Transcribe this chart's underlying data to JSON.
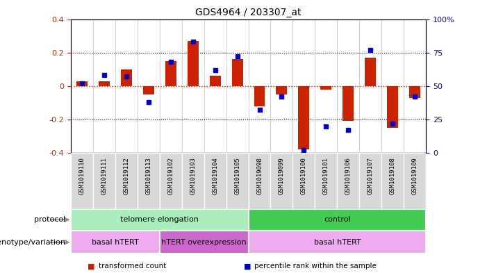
{
  "title": "GDS4964 / 203307_at",
  "samples": [
    "GSM1019110",
    "GSM1019111",
    "GSM1019112",
    "GSM1019113",
    "GSM1019102",
    "GSM1019103",
    "GSM1019104",
    "GSM1019105",
    "GSM1019098",
    "GSM1019099",
    "GSM1019100",
    "GSM1019101",
    "GSM1019106",
    "GSM1019107",
    "GSM1019108",
    "GSM1019109"
  ],
  "transformed_count": [
    0.03,
    0.03,
    0.1,
    -0.05,
    0.15,
    0.27,
    0.06,
    0.16,
    -0.12,
    -0.05,
    -0.38,
    -0.02,
    -0.21,
    0.17,
    -0.25,
    -0.07
  ],
  "percentile_rank": [
    52,
    58,
    57,
    38,
    68,
    83,
    62,
    72,
    32,
    42,
    2,
    20,
    17,
    77,
    22,
    42
  ],
  "ylim_left": [
    -0.4,
    0.4
  ],
  "ylim_right": [
    0,
    100
  ],
  "yticks_left": [
    -0.4,
    -0.2,
    0.0,
    0.2,
    0.4
  ],
  "yticks_right": [
    0,
    25,
    50,
    75,
    100
  ],
  "bar_color": "#cc2200",
  "dot_color": "#0000cc",
  "hline_color": "#cc2200",
  "dotted_color": "#000000",
  "bg_color": "#ffffff",
  "ticklabel_bg": "#d0d0d0",
  "protocol_groups": [
    {
      "label": "telomere elongation",
      "start": 0,
      "end": 8,
      "color": "#aaeebb"
    },
    {
      "label": "control",
      "start": 8,
      "end": 16,
      "color": "#44cc55"
    }
  ],
  "genotype_groups": [
    {
      "label": "basal hTERT",
      "start": 0,
      "end": 4,
      "color": "#eeaaee"
    },
    {
      "label": "hTERT overexpression",
      "start": 4,
      "end": 8,
      "color": "#cc66cc"
    },
    {
      "label": "basal hTERT",
      "start": 8,
      "end": 16,
      "color": "#eeaaee"
    }
  ],
  "legend_items": [
    {
      "color": "#cc2200",
      "label": "transformed count"
    },
    {
      "color": "#0000cc",
      "label": "percentile rank within the sample"
    }
  ]
}
